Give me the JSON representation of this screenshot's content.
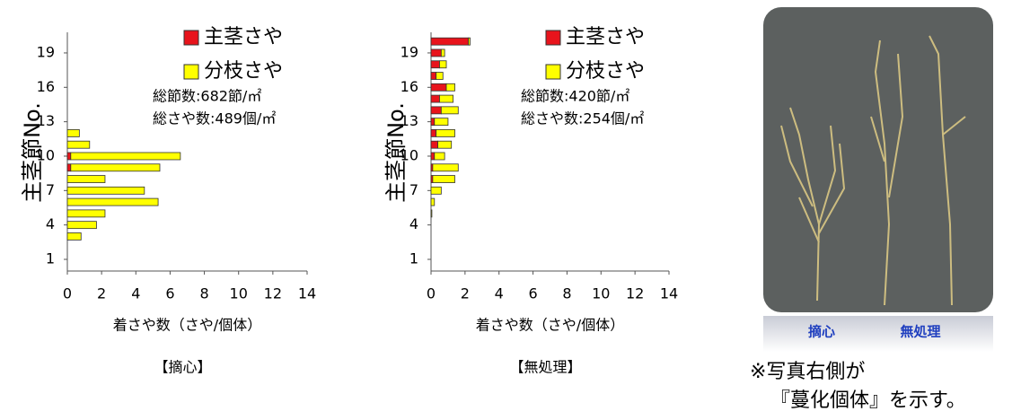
{
  "chart_data": [
    {
      "type": "bar",
      "horizontal": true,
      "stacked": true,
      "x_label": "着さや数（さや/個体）",
      "y_label": "主茎節No.",
      "caption": "【摘心】",
      "annotations": [
        "総節数:682節/㎡",
        "総さや数:489個/㎡"
      ],
      "categories": [
        1,
        null,
        null,
        4,
        null,
        null,
        7,
        null,
        null,
        10,
        null,
        null,
        13,
        null,
        null,
        16,
        null,
        null,
        19,
        null
      ],
      "series": [
        {
          "name": "主茎さや",
          "color": "#e8141c",
          "values": [
            0,
            0,
            0,
            0,
            0,
            0,
            0,
            0,
            0.2,
            0.2,
            0,
            0,
            0,
            0,
            0,
            0,
            0,
            0,
            0,
            0
          ]
        },
        {
          "name": "分枝さや",
          "color": "#ffff00",
          "values": [
            0,
            0,
            0.8,
            1.7,
            2.2,
            5.3,
            4.5,
            2.2,
            5.2,
            6.4,
            1.3,
            0.7,
            0,
            0,
            0,
            0,
            0,
            0,
            0,
            0
          ]
        }
      ],
      "xlim": [
        0,
        14
      ],
      "xticks": [
        0,
        2,
        4,
        6,
        8,
        10,
        12,
        14
      ]
    },
    {
      "type": "bar",
      "horizontal": true,
      "stacked": true,
      "x_label": "着さや数（さや/個体）",
      "y_label": "主茎節No.",
      "caption": "【無処理】",
      "annotations": [
        "総節数:420節/㎡",
        "総さや数:254個/㎡"
      ],
      "categories": [
        1,
        null,
        null,
        4,
        null,
        null,
        7,
        null,
        null,
        10,
        null,
        null,
        13,
        null,
        null,
        16,
        null,
        null,
        19,
        null
      ],
      "series": [
        {
          "name": "主茎さや",
          "color": "#e8141c",
          "values": [
            0,
            0,
            0,
            0,
            0,
            0,
            0,
            0.1,
            0.1,
            0.2,
            0.4,
            0.3,
            0.2,
            0.6,
            0.5,
            0.9,
            0.3,
            0.5,
            0.6,
            2.2
          ]
        },
        {
          "name": "分枝さや",
          "color": "#ffff00",
          "values": [
            0,
            0,
            0,
            0,
            0.05,
            0.2,
            0.6,
            1.3,
            1.5,
            0.6,
            0.8,
            1.1,
            0.8,
            1.0,
            0.8,
            0.5,
            0.4,
            0.4,
            0.2,
            0.1
          ]
        }
      ],
      "xlim": [
        0,
        14
      ],
      "xticks": [
        0,
        2,
        4,
        6,
        8,
        10,
        12,
        14
      ]
    }
  ],
  "photo": {
    "labels": [
      "摘心",
      "無処理"
    ],
    "note": [
      "※写真右側が",
      "『蔓化個体』を示す。"
    ]
  }
}
